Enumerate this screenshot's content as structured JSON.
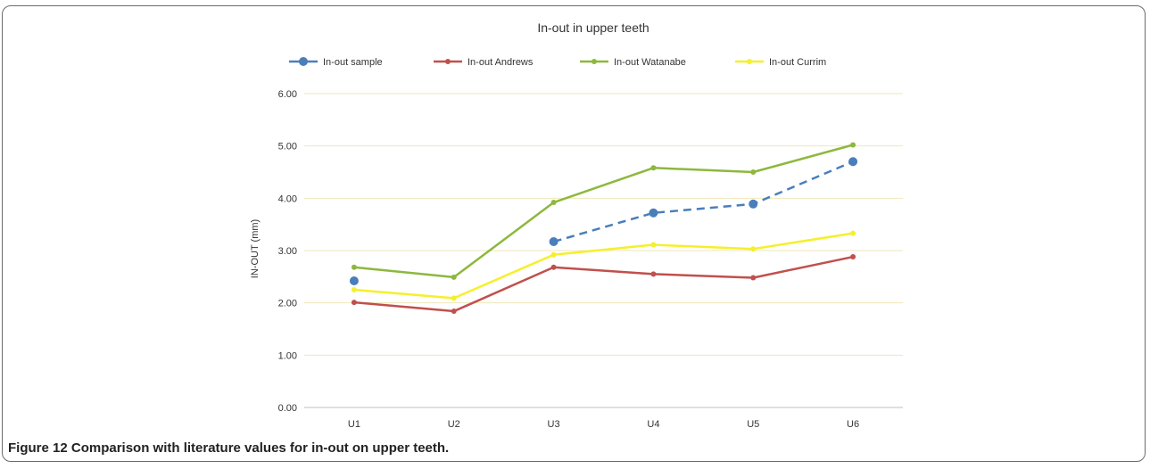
{
  "caption": {
    "label": "Figure 12",
    "text": "Comparison with literature values for in-out on upper teeth."
  },
  "chart_data": {
    "type": "line",
    "title": "In-out in upper teeth",
    "xlabel": "",
    "ylabel": "IN-OUT (mm)",
    "ylim": [
      0,
      6
    ],
    "yticks": [
      "0.00",
      "1.00",
      "2.00",
      "3.00",
      "4.00",
      "5.00",
      "6.00"
    ],
    "grid": true,
    "legend_position": "top",
    "categories": [
      "U1",
      "U2",
      "U3",
      "U4",
      "U5",
      "U6"
    ],
    "series": [
      {
        "name": "In-out sample",
        "color": "#4a7ebb",
        "dashed": true,
        "marker": "large-circle",
        "values": [
          2.42,
          null,
          3.17,
          3.72,
          3.89,
          4.7
        ]
      },
      {
        "name": "In-out Andrews",
        "color": "#c0504d",
        "dashed": false,
        "marker": "small-circle",
        "values": [
          2.01,
          1.84,
          2.68,
          2.55,
          2.48,
          2.88
        ]
      },
      {
        "name": "In-out Watanabe",
        "color": "#8db83d",
        "dashed": false,
        "marker": "small-circle",
        "values": [
          2.68,
          2.49,
          3.92,
          4.58,
          4.5,
          5.02
        ]
      },
      {
        "name": "In-out Currim",
        "color": "#f5f02a",
        "dashed": false,
        "marker": "small-circle",
        "values": [
          2.25,
          2.09,
          2.92,
          3.11,
          3.03,
          3.33
        ]
      }
    ]
  }
}
